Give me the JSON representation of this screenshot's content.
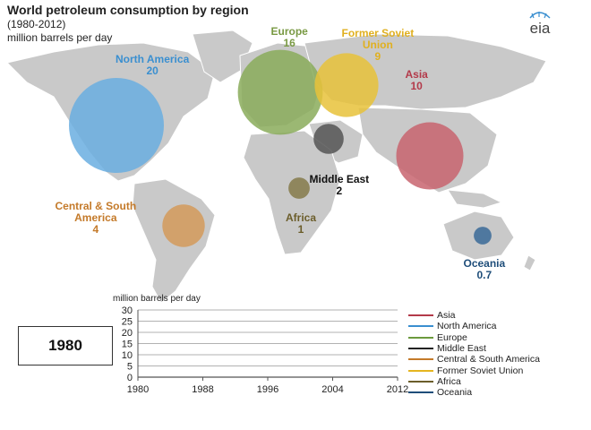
{
  "title": "World petroleum  consumption by region",
  "subtitle": "(1980-2012)",
  "units": "million barrels per day",
  "logo_text": "eia",
  "current_year": "1980",
  "chart_data": [
    {
      "type": "bubble-map",
      "year": "1980",
      "units": "million barrels per day",
      "regions": [
        {
          "name": "North America",
          "name_lines": [
            "North America"
          ],
          "value_label": "20",
          "value": 20,
          "color": "#6aaee0"
        },
        {
          "name": "Europe",
          "name_lines": [
            "Europe"
          ],
          "value_label": "16",
          "value": 16,
          "color": "#8aab5a"
        },
        {
          "name": "Former Soviet Union",
          "name_lines": [
            "Former Soviet",
            "Union"
          ],
          "value_label": "9",
          "value": 9,
          "color": "#e8c23a"
        },
        {
          "name": "Asia",
          "name_lines": [
            "Asia"
          ],
          "value_label": "10",
          "value": 10,
          "color": "#c8646e"
        },
        {
          "name": "Middle East",
          "name_lines": [
            "Middle East"
          ],
          "value_label": "2",
          "value": 2,
          "color": "#555555"
        },
        {
          "name": "Africa",
          "name_lines": [
            "Africa"
          ],
          "value_label": "1",
          "value": 1,
          "color": "#857a4a"
        },
        {
          "name": "Central & South America",
          "name_lines": [
            "Central & South",
            "America"
          ],
          "value_label": "4",
          "value": 4,
          "color": "#d49a5a"
        },
        {
          "name": "Oceania",
          "name_lines": [
            "Oceania"
          ],
          "value_label": "0.7",
          "value": 0.7,
          "color": "#3a6a98"
        }
      ]
    },
    {
      "type": "line",
      "ylabel": "million barrels per day",
      "ylim": [
        0,
        30
      ],
      "yticks": [
        "30",
        "25",
        "20",
        "15",
        "10",
        "5",
        "0"
      ],
      "xlim": [
        1980,
        2012
      ],
      "xticks": [
        "1980",
        "1988",
        "1996",
        "2004",
        "2012"
      ],
      "grid": true,
      "legend_position": "right",
      "series": [
        {
          "name": "Asia",
          "color": "#b33a4a",
          "values": []
        },
        {
          "name": "North America",
          "color": "#3a8fd0",
          "values": []
        },
        {
          "name": "Europe",
          "color": "#6c9a3e",
          "values": []
        },
        {
          "name": "Middle East",
          "color": "#222222",
          "values": []
        },
        {
          "name": "Central & South America",
          "color": "#c47a2a",
          "values": []
        },
        {
          "name": "Former Soviet Union",
          "color": "#e5b520",
          "values": []
        },
        {
          "name": "Africa",
          "color": "#6b5d2a",
          "values": []
        },
        {
          "name": "Oceania",
          "color": "#1f4e7a",
          "values": []
        }
      ]
    }
  ]
}
